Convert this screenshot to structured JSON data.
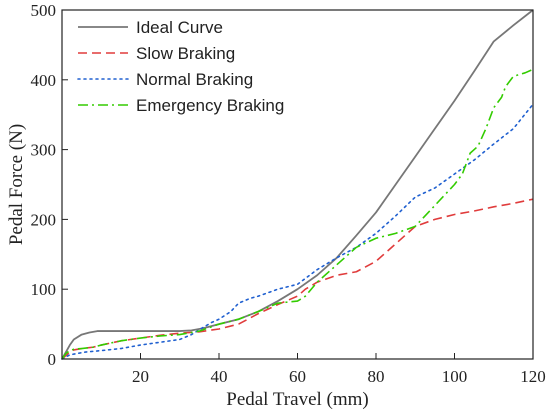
{
  "chart_data": {
    "type": "line",
    "xlabel": "Pedal Travel (mm)",
    "ylabel": "Pedal Force (N)",
    "xlim": [
      0,
      120
    ],
    "ylim": [
      0,
      500
    ],
    "xticks": [
      20,
      40,
      60,
      80,
      100,
      120
    ],
    "yticks": [
      0,
      100,
      200,
      300,
      400,
      500
    ],
    "grid": false,
    "legend_position": "top-left",
    "series": [
      {
        "name": "Ideal Curve",
        "color": "#777777",
        "dash": "solid",
        "x": [
          0,
          1,
          2,
          3,
          5,
          7,
          9,
          10,
          15,
          20,
          25,
          30,
          33,
          36,
          40,
          45,
          50,
          55,
          60,
          65,
          70,
          75,
          80,
          85,
          90,
          95,
          100,
          105,
          110,
          115,
          120
        ],
        "y": [
          0,
          10,
          20,
          28,
          35,
          38,
          40,
          40,
          40,
          40,
          40,
          40,
          41,
          44,
          50,
          57,
          68,
          83,
          100,
          120,
          145,
          177,
          210,
          250,
          290,
          330,
          370,
          412,
          455,
          478,
          500
        ]
      },
      {
        "name": "Slow Braking",
        "color": "#e03c3c",
        "dash": "dashed",
        "x": [
          0,
          1,
          2,
          3,
          5,
          8,
          10,
          15,
          20,
          25,
          30,
          35,
          40,
          45,
          50,
          55,
          60,
          62,
          65,
          70,
          75,
          80,
          85,
          90,
          95,
          100,
          105,
          110,
          115,
          120
        ],
        "y": [
          0,
          5,
          10,
          13,
          15,
          17,
          20,
          26,
          30,
          34,
          37,
          39,
          43,
          50,
          65,
          78,
          90,
          100,
          110,
          120,
          125,
          140,
          165,
          190,
          200,
          207,
          212,
          218,
          223,
          229
        ]
      },
      {
        "name": "Normal Braking",
        "color": "#2060d0",
        "dash": "dotted",
        "x": [
          0,
          1,
          2,
          4,
          6,
          10,
          15,
          20,
          25,
          30,
          33,
          35,
          38,
          40,
          43,
          45,
          48,
          50,
          55,
          60,
          65,
          70,
          75,
          80,
          85,
          90,
          95,
          100,
          105,
          110,
          115,
          120
        ],
        "y": [
          0,
          3,
          6,
          8,
          10,
          12,
          15,
          20,
          24,
          28,
          35,
          42,
          52,
          57,
          68,
          80,
          87,
          90,
          100,
          107,
          128,
          145,
          160,
          180,
          205,
          232,
          245,
          265,
          285,
          308,
          330,
          365
        ]
      },
      {
        "name": "Emergency Braking",
        "color": "#33cc00",
        "dash": "dashdot",
        "x": [
          0,
          1,
          2,
          3,
          5,
          8,
          10,
          15,
          20,
          25,
          30,
          35,
          40,
          45,
          50,
          55,
          60,
          62,
          65,
          70,
          75,
          80,
          85,
          90,
          95,
          100,
          102,
          104,
          106,
          108,
          110,
          112,
          113,
          115,
          118,
          120
        ],
        "y": [
          0,
          8,
          12,
          14,
          15,
          17,
          20,
          26,
          30,
          33,
          35,
          40,
          50,
          57,
          68,
          80,
          83,
          90,
          110,
          135,
          160,
          173,
          180,
          190,
          220,
          250,
          265,
          295,
          305,
          330,
          360,
          375,
          390,
          405,
          410,
          415
        ]
      }
    ]
  }
}
